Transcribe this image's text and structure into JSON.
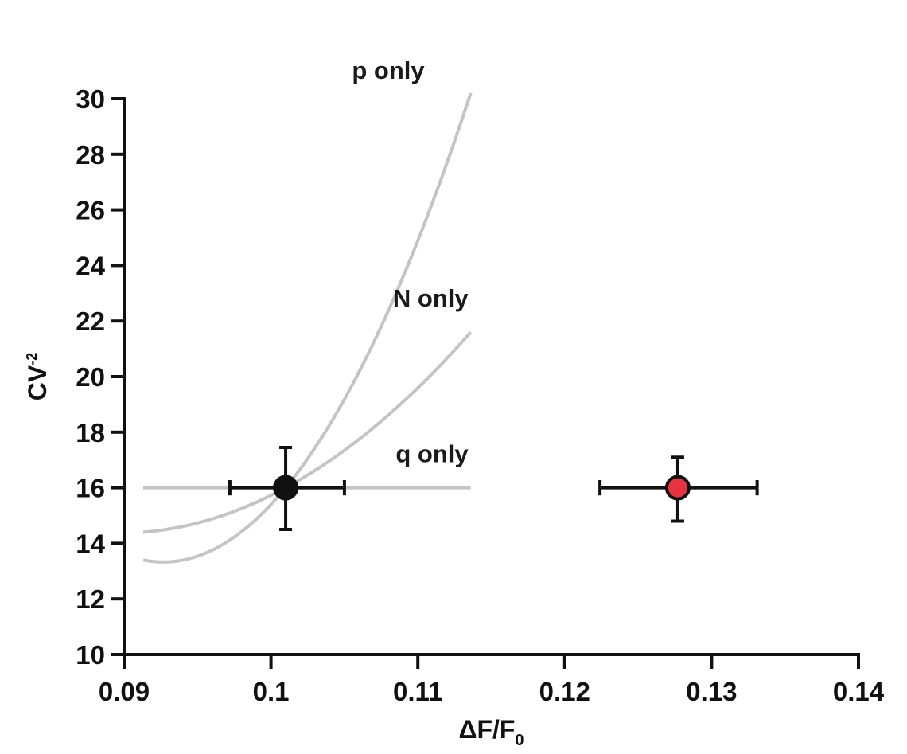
{
  "chart_data": {
    "type": "scatter",
    "xlabel": "ΔF/F",
    "xlabel_subscript": "0",
    "ylabel": "CV",
    "ylabel_superscript": "-2",
    "xlim": [
      0.09,
      0.14
    ],
    "ylim": [
      10,
      30
    ],
    "x_ticks": [
      0.09,
      0.1,
      0.11,
      0.12,
      0.13,
      0.14
    ],
    "x_tick_labels": [
      "0.09",
      "0.1",
      "0.11",
      "0.12",
      "0.13",
      "0.14"
    ],
    "y_ticks": [
      10,
      12,
      14,
      16,
      18,
      20,
      22,
      24,
      26,
      28,
      30
    ],
    "y_tick_labels": [
      "10",
      "12",
      "14",
      "16",
      "18",
      "20",
      "22",
      "24",
      "26",
      "28",
      "30"
    ],
    "grid": false,
    "model_curves": [
      {
        "name": "p only",
        "color": "#c4c4c4",
        "x": [
          0.0913,
          0.1136
        ],
        "y": [
          13.4,
          30.2
        ]
      },
      {
        "name": "N only",
        "color": "#c4c4c4",
        "x": [
          0.0913,
          0.1136
        ],
        "y": [
          14.4,
          21.6
        ]
      },
      {
        "name": "q only",
        "color": "#c4c4c4",
        "x": [
          0.0913,
          0.1136
        ],
        "y": [
          16.0,
          16.0
        ]
      }
    ],
    "points": [
      {
        "x": 0.101,
        "y": 16.0,
        "x_err": [
          0.0972,
          0.105
        ],
        "y_err": [
          14.5,
          17.45
        ],
        "color": "#111111"
      },
      {
        "x": 0.1277,
        "y": 16.0,
        "x_err": [
          0.1224,
          0.1331
        ],
        "y_err": [
          14.8,
          17.1
        ],
        "color": "#e8343f"
      }
    ]
  }
}
